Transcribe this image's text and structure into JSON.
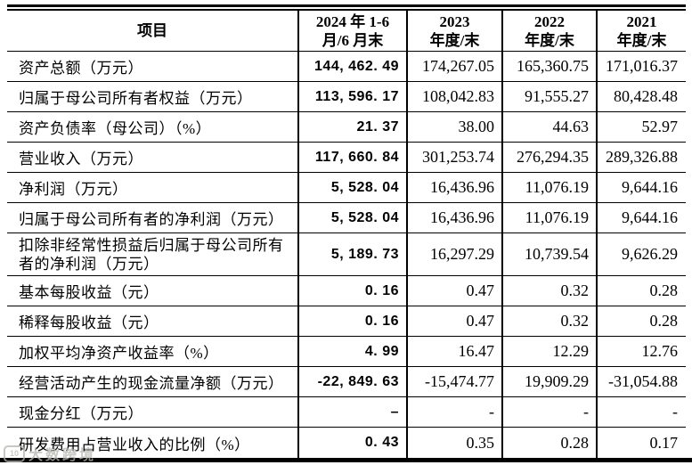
{
  "watermark": {
    "logo": "10",
    "text": "大数跨境"
  },
  "table": {
    "column_keys": [
      "2024h1",
      "2023",
      "2022",
      "2021"
    ],
    "headers": [
      {
        "line1": "项目",
        "line2": ""
      },
      {
        "line1": "2024 年 1-6",
        "line2": "月/6 月末"
      },
      {
        "line1": "2023",
        "line2": "年度/末"
      },
      {
        "line1": "2022",
        "line2": "年度/末"
      },
      {
        "line1": "2021",
        "line2": "年度/末"
      }
    ],
    "rows": [
      {
        "label": "资产总额（万元）",
        "tall": false,
        "values": [
          "144, 462. 49",
          "174,267.05",
          "165,360.75",
          "171,016.37"
        ]
      },
      {
        "label": "归属于母公司所有者权益（万元）",
        "tall": false,
        "values": [
          "113, 596. 17",
          "108,042.83",
          "91,555.27",
          "80,428.48"
        ]
      },
      {
        "label": "资产负债率（母公司）（%）",
        "tall": false,
        "values": [
          "21. 37",
          "38.00",
          "44.63",
          "52.97"
        ]
      },
      {
        "label": "营业收入（万元）",
        "tall": false,
        "values": [
          "117, 660. 84",
          "301,253.74",
          "276,294.35",
          "289,326.88"
        ]
      },
      {
        "label": "净利润（万元）",
        "tall": false,
        "values": [
          "5, 528. 04",
          "16,436.96",
          "11,076.19",
          "9,644.16"
        ]
      },
      {
        "label": "归属于母公司所有者的净利润（万元）",
        "tall": false,
        "values": [
          "5, 528. 04",
          "16,436.96",
          "11,076.19",
          "9,644.16"
        ]
      },
      {
        "label": "扣除非经常性损益后归属于母公司所有者的净利润（万元）",
        "tall": true,
        "values": [
          "5, 189. 73",
          "16,297.29",
          "10,739.54",
          "9,626.29"
        ]
      },
      {
        "label": "基本每股收益（元）",
        "tall": false,
        "values": [
          "0. 16",
          "0.47",
          "0.32",
          "0.28"
        ]
      },
      {
        "label": "稀释每股收益（元）",
        "tall": false,
        "values": [
          "0. 16",
          "0.47",
          "0.32",
          "0.28"
        ]
      },
      {
        "label": "加权平均净资产收益率（%）",
        "tall": false,
        "values": [
          "4. 99",
          "16.47",
          "12.29",
          "12.76"
        ]
      },
      {
        "label": "经营活动产生的现金流量净额（万元）",
        "tall": false,
        "values": [
          "-22, 849. 63",
          "-15,474.77",
          "19,909.29",
          "-31,054.88"
        ]
      },
      {
        "label": "现金分红（万元）",
        "tall": false,
        "values": [
          "–",
          "-",
          "-",
          "-"
        ]
      },
      {
        "label": "研发费用占营业收入的比例（%）",
        "tall": false,
        "values": [
          "0. 43",
          "0.35",
          "0.28",
          "0.17"
        ]
      }
    ]
  }
}
